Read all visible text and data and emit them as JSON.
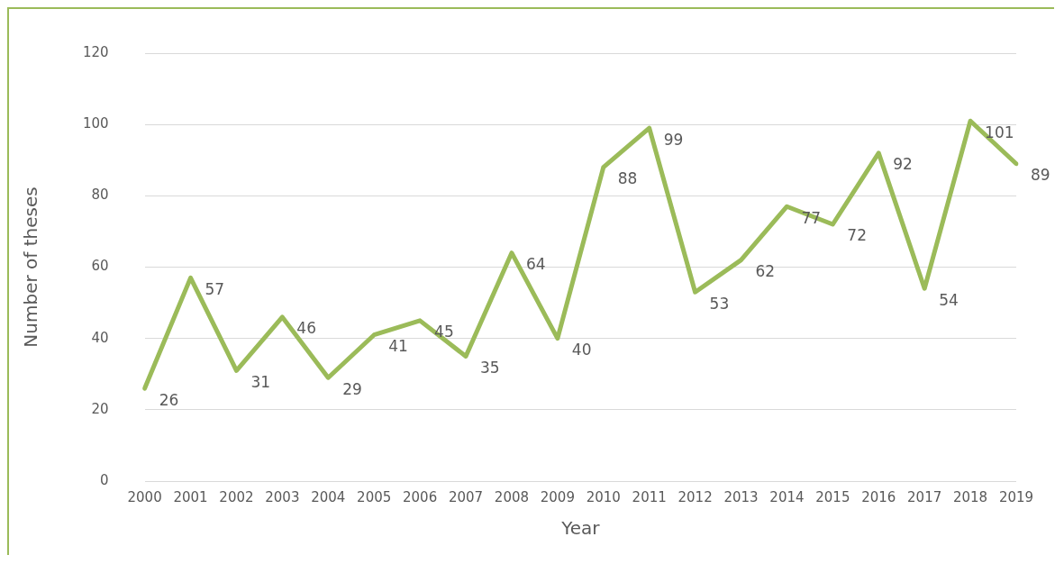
{
  "chart_data": {
    "type": "line",
    "xlabel": "Year",
    "ylabel": "Number of theses",
    "categories": [
      "2000",
      "2001",
      "2002",
      "2003",
      "2004",
      "2005",
      "2006",
      "2007",
      "2008",
      "2009",
      "2010",
      "2011",
      "2012",
      "2013",
      "2014",
      "2015",
      "2016",
      "2017",
      "2018",
      "2019"
    ],
    "series": [
      {
        "color": "#9bbb59",
        "values": [
          26,
          57,
          31,
          46,
          29,
          41,
          45,
          35,
          64,
          40,
          88,
          99,
          53,
          62,
          77,
          72,
          92,
          54,
          101,
          89
        ]
      }
    ],
    "ylim": [
      0,
      120
    ],
    "yticks": [
      0,
      20,
      40,
      60,
      80,
      100,
      120
    ],
    "grid": "y",
    "legend": false,
    "data_labels": true,
    "marker": "none",
    "line_style": "solid"
  }
}
